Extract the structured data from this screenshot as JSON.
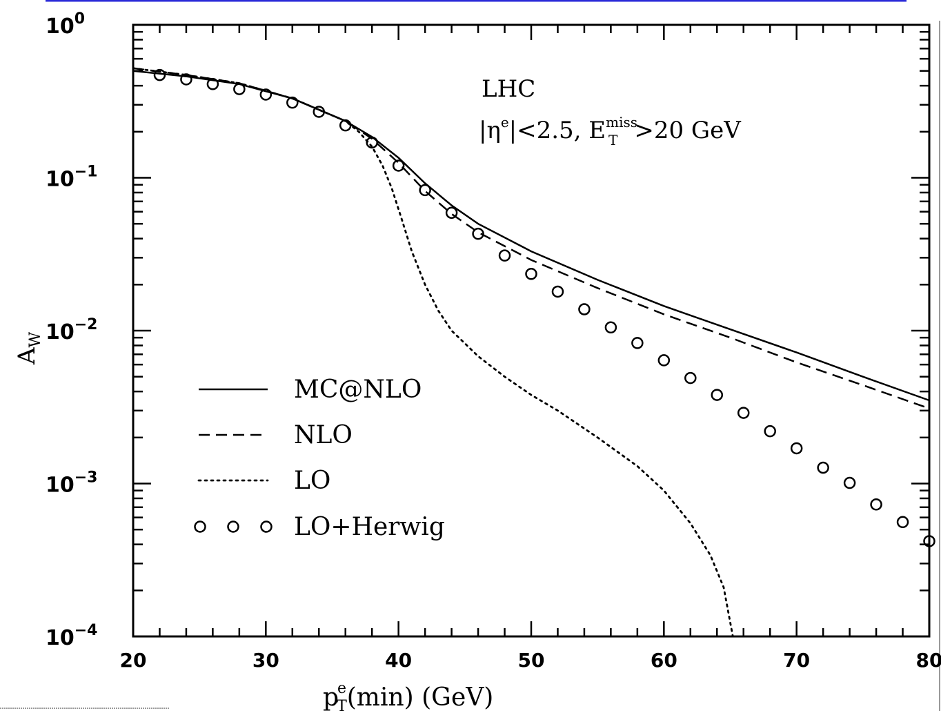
{
  "colors": {
    "background": "#ffffff",
    "ink": "#000000",
    "top_rule": "#2a2ad8",
    "right_rule": "#9a9a9a"
  },
  "chart_data": {
    "type": "line",
    "xlabel": "p",
    "xlabel_sup": "e",
    "xlabel_sub": "T",
    "xlabel_rest": "(min)  (GeV)",
    "ylabel": "A",
    "ylabel_sub": "W",
    "xlim": [
      20,
      80
    ],
    "ylim": [
      0.0001,
      1
    ],
    "yscale": "log",
    "x_ticks": [
      "20",
      "30",
      "40",
      "50",
      "60",
      "70",
      "80"
    ],
    "x_tick_values": [
      20,
      30,
      40,
      50,
      60,
      70,
      80
    ],
    "y_ticks": [
      {
        "value": 1,
        "base": "10",
        "exp": "0"
      },
      {
        "value": 0.1,
        "base": "10",
        "exp": "−1"
      },
      {
        "value": 0.01,
        "base": "10",
        "exp": "−2"
      },
      {
        "value": 0.001,
        "base": "10",
        "exp": "−3"
      },
      {
        "value": 0.0001,
        "base": "10",
        "exp": "−4"
      }
    ],
    "annotation": {
      "line1": "LHC",
      "line2_a": "|η",
      "line2_a_sup": "e",
      "line2_b": "|<2.5,  E",
      "line2_b_sub": "T",
      "line2_b_sup": "miss",
      "line2_c": ">20 GeV"
    },
    "legend_position": "lower-left",
    "series": [
      {
        "name": "MC@NLO",
        "style": "solid",
        "x": [
          20,
          24,
          28,
          32,
          36,
          38,
          40,
          42,
          44,
          46,
          50,
          55,
          60,
          65,
          70,
          75,
          80
        ],
        "y": [
          0.5,
          0.46,
          0.41,
          0.33,
          0.235,
          0.185,
          0.135,
          0.092,
          0.066,
          0.05,
          0.033,
          0.0215,
          0.0145,
          0.0102,
          0.0072,
          0.005,
          0.0035
        ]
      },
      {
        "name": "NLO",
        "style": "dashed",
        "x": [
          20,
          24,
          28,
          32,
          36,
          38,
          40,
          42,
          44,
          46,
          50,
          55,
          60,
          65,
          70,
          75,
          80
        ],
        "y": [
          0.52,
          0.47,
          0.415,
          0.33,
          0.235,
          0.18,
          0.125,
          0.082,
          0.058,
          0.044,
          0.029,
          0.019,
          0.0128,
          0.009,
          0.0062,
          0.0044,
          0.0031
        ]
      },
      {
        "name": "LO",
        "style": "dotted",
        "x": [
          20,
          24,
          28,
          32,
          36,
          37,
          38,
          38.8,
          39.5,
          40.2,
          41,
          42,
          43,
          44,
          46,
          48,
          50,
          52,
          55,
          58,
          60,
          62,
          63.5,
          64.5,
          65.2
        ],
        "y": [
          0.52,
          0.47,
          0.415,
          0.33,
          0.235,
          0.2,
          0.16,
          0.12,
          0.085,
          0.055,
          0.033,
          0.02,
          0.0135,
          0.01,
          0.0068,
          0.005,
          0.0038,
          0.003,
          0.002,
          0.0013,
          0.0009,
          0.00055,
          0.00034,
          0.00021,
          0.0001
        ]
      },
      {
        "name": "LO+Herwig",
        "style": "circles",
        "x": [
          22,
          24,
          26,
          28,
          30,
          32,
          34,
          36,
          38,
          40,
          42,
          44,
          46,
          48,
          50,
          52,
          54,
          56,
          58,
          60,
          62,
          64,
          66,
          68,
          70,
          72,
          74,
          76,
          78,
          80
        ],
        "y": [
          0.47,
          0.44,
          0.41,
          0.38,
          0.35,
          0.31,
          0.27,
          0.22,
          0.17,
          0.12,
          0.083,
          0.059,
          0.043,
          0.031,
          0.0235,
          0.018,
          0.0138,
          0.0105,
          0.0083,
          0.0064,
          0.0049,
          0.0038,
          0.0029,
          0.0022,
          0.0017,
          0.00127,
          0.00101,
          0.00073,
          0.00056,
          0.00042
        ]
      }
    ]
  }
}
